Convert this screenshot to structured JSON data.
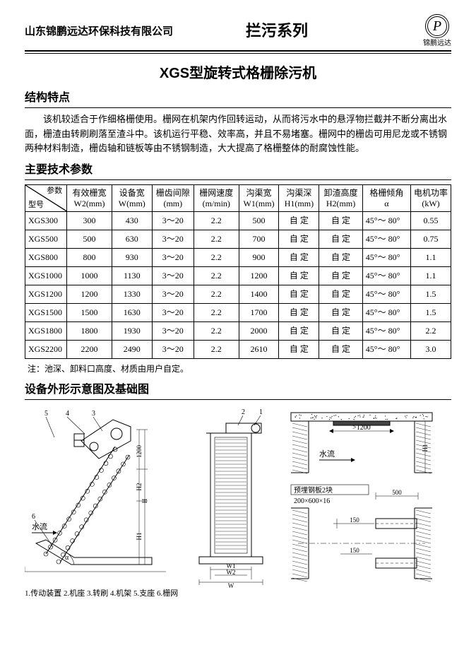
{
  "header": {
    "company": "山东锦鹏远达环保科技有限公司",
    "series": "拦污系列",
    "logo_letter": "P",
    "logo_text": "锦鹏远达"
  },
  "title": "XGS型旋转式格栅除污机",
  "struct_heading": "结构特点",
  "struct_para": "该机较适合于作细格栅使用。栅网在机架内作回转运动，从而将污水中的悬浮物拦截并不断分离出水面，栅渣由转刷刷落至渣斗中。该机运行平稳、效率高，并且不易堵塞。栅网中的栅齿可用尼龙或不锈钢两种材料制造，栅齿轴和链板等由不锈钢制造，大大提高了格栅整体的耐腐蚀性能。",
  "params_heading": "主要技术参数",
  "table_head": {
    "diag_top": "参数",
    "diag_bottom": "型号",
    "cols": [
      "有效栅宽\nW2(mm)",
      "设备宽\nW(mm)",
      "栅齿间隙\n(mm)",
      "栅网速度\n(m/min)",
      "沟渠宽\nW1(mm)",
      "沟渠深\nH1(mm)",
      "卸渣高度\nH2(mm)",
      "格栅倾角\nα",
      "电机功率\n(kW)"
    ]
  },
  "rows": [
    {
      "m": "XGS300",
      "w2": "300",
      "w": "430",
      "gap": "3～20",
      "spd": "2.2",
      "w1": "500",
      "h1": "自 定",
      "h2": "自 定",
      "a": "45°～ 80°",
      "p": "0.55"
    },
    {
      "m": "XGS500",
      "w2": "500",
      "w": "630",
      "gap": "3～20",
      "spd": "2.2",
      "w1": "700",
      "h1": "自 定",
      "h2": "自 定",
      "a": "45°～ 80°",
      "p": "0.75"
    },
    {
      "m": "XGS800",
      "w2": "800",
      "w": "930",
      "gap": "3～20",
      "spd": "2.2",
      "w1": "900",
      "h1": "自 定",
      "h2": "自 定",
      "a": "45°～ 80°",
      "p": "1.1"
    },
    {
      "m": "XGS1000",
      "w2": "1000",
      "w": "1130",
      "gap": "3～20",
      "spd": "2.2",
      "w1": "1200",
      "h1": "自 定",
      "h2": "自 定",
      "a": "45°～ 80°",
      "p": "1.1"
    },
    {
      "m": "XGS1200",
      "w2": "1200",
      "w": "1330",
      "gap": "3～20",
      "spd": "2.2",
      "w1": "1400",
      "h1": "自 定",
      "h2": "自 定",
      "a": "45°～ 80°",
      "p": "1.5"
    },
    {
      "m": "XGS1500",
      "w2": "1500",
      "w": "1630",
      "gap": "3～20",
      "spd": "2.2",
      "w1": "1700",
      "h1": "自 定",
      "h2": "自 定",
      "a": "45°～ 80°",
      "p": "1.5"
    },
    {
      "m": "XGS1800",
      "w2": "1800",
      "w": "1930",
      "gap": "3～20",
      "spd": "2.2",
      "w1": "2000",
      "h1": "自 定",
      "h2": "自 定",
      "a": "45°～ 80°",
      "p": "2.2"
    },
    {
      "m": "XGS2200",
      "w2": "2200",
      "w": "2490",
      "gap": "3～20",
      "spd": "2.2",
      "w1": "2610",
      "h1": "自 定",
      "h2": "自 定",
      "a": "45°～ 80°",
      "p": "3.0"
    }
  ],
  "note": "注：池深、卸料口高度、材质由用户自定。",
  "diagram_heading": "设备外形示意图及基础图",
  "diagram": {
    "left_callouts": [
      "5",
      "4",
      "3",
      "2",
      "1"
    ],
    "left_dims": [
      "1200",
      "H2",
      "H",
      "H1"
    ],
    "left_flow": "水流",
    "angle": "α",
    "left_num6": "6",
    "caption": "1.传动装置 2.机座 3.转刷 4.机架 5.支座 6.栅网",
    "center_dims": [
      "W1",
      "W2",
      "W"
    ],
    "right_top_dim": ">1200",
    "right_top_h": "H1",
    "right_flow": "水流",
    "embed_label": "预埋钢板2块",
    "embed_spec": "200×600×16",
    "r_dim_500": "500",
    "r_dim_150a": "150",
    "r_dim_150b": "150"
  }
}
